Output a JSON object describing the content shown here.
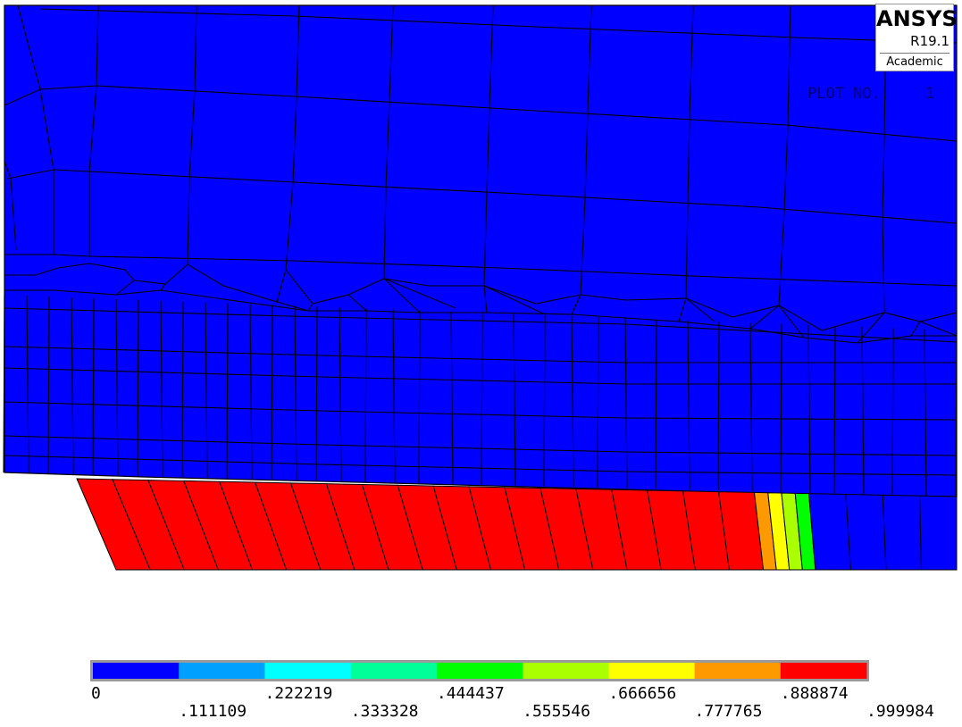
{
  "logo": {
    "brand": "ANSYS",
    "release": "R19.1",
    "edition": "Academic"
  },
  "plot_label": {
    "text": "PLOT NO.",
    "number": "1"
  },
  "colors": {
    "background": "#ffffff",
    "mesh_lines": "#000000",
    "level_0": "#0000ff",
    "level_1": "#00a0ff",
    "level_2": "#00ffff",
    "level_3": "#00ff99",
    "level_4": "#00ff00",
    "level_5": "#aaff00",
    "level_6": "#ffff00",
    "level_7": "#ff9900",
    "level_8": "#ff0000"
  },
  "chart_data": {
    "type": "heatmap",
    "title": "",
    "legend_placement": "bottom",
    "contour_levels": [
      {
        "min": 0,
        "max": 0.111109,
        "color": "#0000ff"
      },
      {
        "min": 0.111109,
        "max": 0.222219,
        "color": "#00a0ff"
      },
      {
        "min": 0.222219,
        "max": 0.333328,
        "color": "#00ffff"
      },
      {
        "min": 0.333328,
        "max": 0.444437,
        "color": "#00ff99"
      },
      {
        "min": 0.444437,
        "max": 0.555546,
        "color": "#00ff00"
      },
      {
        "min": 0.555546,
        "max": 0.666656,
        "color": "#aaff00"
      },
      {
        "min": 0.666656,
        "max": 0.777765,
        "color": "#ffff00"
      },
      {
        "min": 0.777765,
        "max": 0.888874,
        "color": "#ff9900"
      },
      {
        "min": 0.888874,
        "max": 0.999984,
        "color": "#ff0000"
      }
    ],
    "tick_labels": [
      "0",
      ".111109",
      ".222219",
      ".333328",
      ".444437",
      ".555546",
      ".666656",
      ".777765",
      ".888874",
      ".999984"
    ],
    "value_range": [
      0,
      0.999984
    ],
    "lower_band_element_levels": [
      8,
      8,
      8,
      8,
      8,
      8,
      8,
      8,
      8,
      8,
      8,
      8,
      8,
      8,
      8,
      8,
      8,
      8,
      8,
      7,
      6,
      5,
      4,
      0,
      0,
      0,
      0
    ]
  }
}
